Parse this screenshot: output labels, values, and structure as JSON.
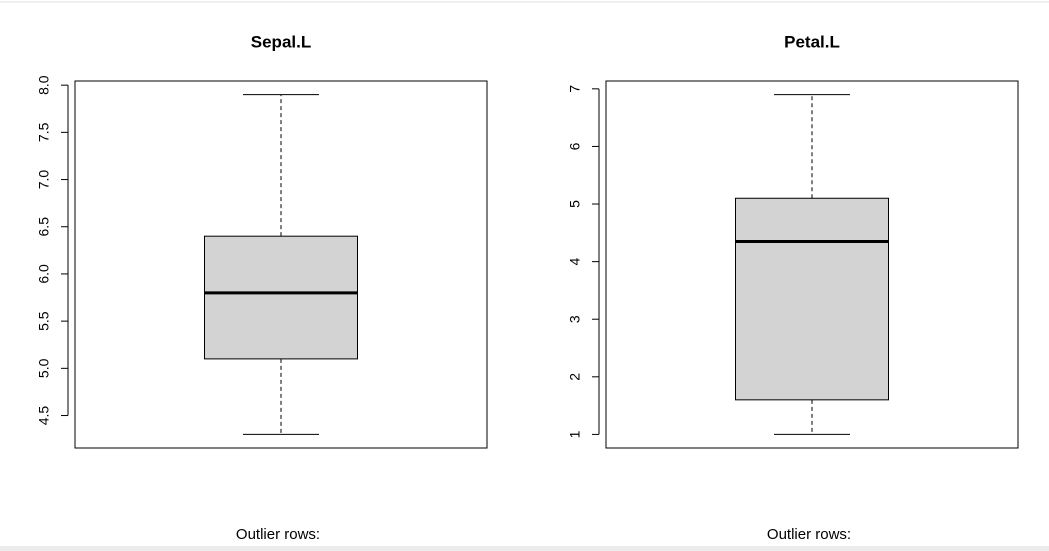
{
  "chart_data": [
    {
      "type": "box",
      "title": "Sepal.L",
      "min": 4.3,
      "q1": 5.1,
      "median": 5.8,
      "q3": 6.4,
      "max": 7.9,
      "ylim": [
        4.156,
        8.044
      ],
      "yticks": [
        {
          "value": 4.5,
          "label": "4.5"
        },
        {
          "value": 5,
          "label": "5.0"
        },
        {
          "value": 5.5,
          "label": "5.5"
        },
        {
          "value": 6,
          "label": "6.0"
        },
        {
          "value": 6.5,
          "label": "6.5"
        },
        {
          "value": 7,
          "label": "7.0"
        },
        {
          "value": 7.5,
          "label": "7.5"
        },
        {
          "value": 8,
          "label": "8.0"
        }
      ],
      "color": "#d3d3d3",
      "caption": "Outlier rows:"
    },
    {
      "type": "box",
      "title": "Petal.L",
      "min": 1,
      "q1": 1.6,
      "median": 4.35,
      "q3": 5.1,
      "max": 6.9,
      "ylim": [
        0.764,
        7.136
      ],
      "yticks": [
        1,
        2,
        3,
        4,
        5,
        6,
        7
      ],
      "color": "#d3d3d3",
      "caption": "Outlier rows:"
    }
  ]
}
